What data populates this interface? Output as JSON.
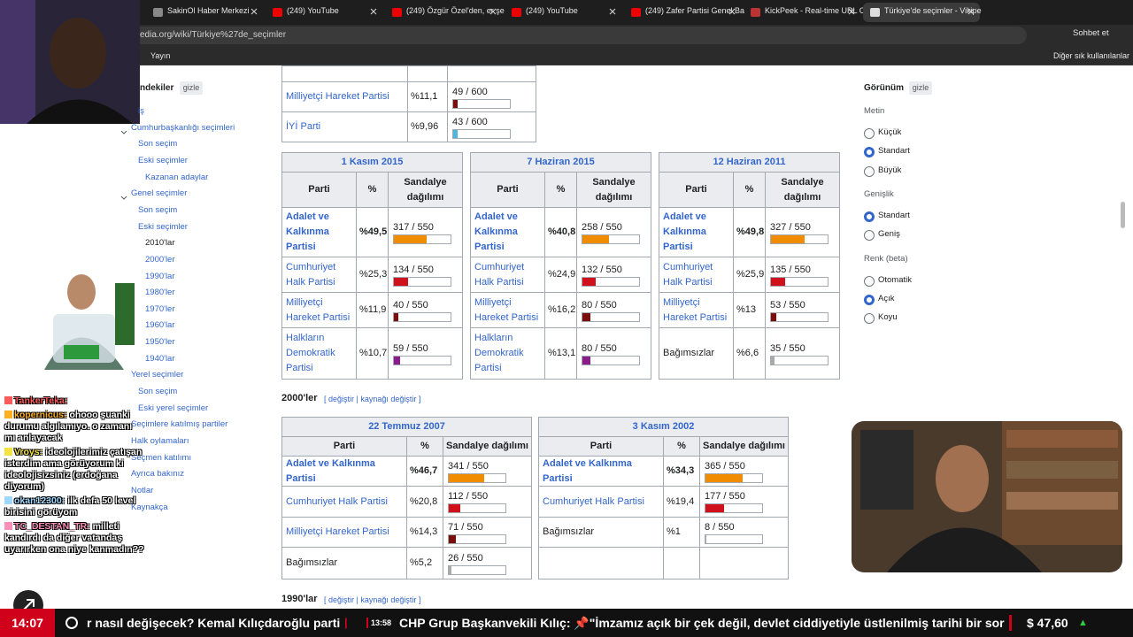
{
  "browser": {
    "tabs": [
      "SakinOl Haber Merkezi",
      "(249) YouTube",
      "(249) Özgür Özel'den, er şe",
      "(249) YouTube",
      "(249) Zafer Partisi Genel Ba",
      "KickPeek - Real-time URL C",
      "Türkiye'de seçimler - Vikipe"
    ],
    "active_tab": 6,
    "url": "edia.org/wiki/Türkiye%27de_seçimler",
    "chat_button": "Sohbet et",
    "bookmarks": [
      "Yayın"
    ],
    "other_bookmarks": "Diğer sık kullanılanlar"
  },
  "toc": {
    "title": "ndekiler",
    "hide": "gizle",
    "items": [
      {
        "text": "iş",
        "level": 2
      },
      {
        "text": "Cumhurbaşkanlığı seçimleri",
        "level": 1,
        "expanded": true
      },
      {
        "text": "Son seçim",
        "level": 2
      },
      {
        "text": "Eski seçimler",
        "level": 2
      },
      {
        "text": "Kazanan adaylar",
        "level": 3
      },
      {
        "text": "Genel seçimler",
        "level": 1,
        "expanded": true
      },
      {
        "text": "Son seçim",
        "level": 2
      },
      {
        "text": "Eski seçimler",
        "level": 2
      },
      {
        "text": "2010'lar",
        "level": 3,
        "current": true
      },
      {
        "text": "2000'ler",
        "level": 3
      },
      {
        "text": "1990'lar",
        "level": 3
      },
      {
        "text": "1980'ler",
        "level": 3
      },
      {
        "text": "1970'ler",
        "level": 3
      },
      {
        "text": "1960'lar",
        "level": 3
      },
      {
        "text": "1950'ler",
        "level": 3
      },
      {
        "text": "1940'lar",
        "level": 3
      },
      {
        "text": "Yerel seçimler",
        "level": 1
      },
      {
        "text": "Son seçim",
        "level": 2
      },
      {
        "text": "Eski yerel seçimler",
        "level": 2
      },
      {
        "text": "Seçimlere katılmış partiler",
        "level": 1
      },
      {
        "text": "Halk oylamaları",
        "level": 1
      },
      {
        "text": "Seçmen katılımı",
        "level": 1
      },
      {
        "text": "Ayrıca bakınız",
        "level": 1
      },
      {
        "text": "Notlar",
        "level": 1
      },
      {
        "text": "Kaynakça",
        "level": 1
      }
    ]
  },
  "top_table": {
    "rows": [
      {
        "party": "Milliyetçi Hareket Partisi",
        "link": true,
        "pct": "%11,1",
        "seats": 49,
        "total": 600,
        "seats_label": "49 / 600",
        "color": "#7b0d0d"
      },
      {
        "party": "İYİ Parti",
        "link": true,
        "pct": "%9,96",
        "seats": 43,
        "total": 600,
        "seats_label": "43 / 600",
        "color": "#4cb6dd"
      }
    ]
  },
  "tables_2010s": [
    {
      "title": "1 Kasım 2015",
      "headers": [
        "Parti",
        "%",
        "Sandalye dağılımı"
      ],
      "rows": [
        {
          "party": "Adalet ve Kalkınma Partisi",
          "link": true,
          "winner": true,
          "pct": "%49,5",
          "seats": 317,
          "total": 550,
          "seats_label": "317 / 550",
          "color": "#f18c00"
        },
        {
          "party": "Cumhuriyet Halk Partisi",
          "link": true,
          "pct": "%25,3",
          "seats": 134,
          "total": 550,
          "seats_label": "134 / 550",
          "color": "#d0111b"
        },
        {
          "party": "Milliyetçi Hareket Partisi",
          "link": true,
          "pct": "%11,9",
          "seats": 40,
          "total": 550,
          "seats_label": "40 / 550",
          "color": "#7b0d0d"
        },
        {
          "party": "Halkların Demokratik Partisi",
          "link": true,
          "pct": "%10,7",
          "seats": 59,
          "total": 550,
          "seats_label": "59 / 550",
          "color": "#8b1c8b"
        }
      ]
    },
    {
      "title": "7 Haziran 2015",
      "headers": [
        "Parti",
        "%",
        "Sandalye dağılımı"
      ],
      "rows": [
        {
          "party": "Adalet ve Kalkınma Partisi",
          "link": true,
          "winner": true,
          "pct": "%40,8",
          "seats": 258,
          "total": 550,
          "seats_label": "258 / 550",
          "color": "#f18c00"
        },
        {
          "party": "Cumhuriyet Halk Partisi",
          "link": true,
          "pct": "%24,9",
          "seats": 132,
          "total": 550,
          "seats_label": "132 / 550",
          "color": "#d0111b"
        },
        {
          "party": "Milliyetçi Hareket Partisi",
          "link": true,
          "pct": "%16,2",
          "seats": 80,
          "total": 550,
          "seats_label": "80 / 550",
          "color": "#7b0d0d"
        },
        {
          "party": "Halkların Demokratik Partisi",
          "link": true,
          "pct": "%13,1",
          "seats": 80,
          "total": 550,
          "seats_label": "80 / 550",
          "color": "#8b1c8b"
        }
      ]
    },
    {
      "title": "12 Haziran 2011",
      "headers": [
        "Parti",
        "%",
        "Sandalye dağılımı"
      ],
      "rows": [
        {
          "party": "Adalet ve Kalkınma Partisi",
          "link": true,
          "winner": true,
          "pct": "%49,8",
          "seats": 327,
          "total": 550,
          "seats_label": "327 / 550",
          "color": "#f18c00"
        },
        {
          "party": "Cumhuriyet Halk Partisi",
          "link": true,
          "pct": "%25,9",
          "seats": 135,
          "total": 550,
          "seats_label": "135 / 550",
          "color": "#d0111b"
        },
        {
          "party": "Milliyetçi Hareket Partisi",
          "link": true,
          "pct": "%13",
          "seats": 53,
          "total": 550,
          "seats_label": "53 / 550",
          "color": "#7b0d0d"
        },
        {
          "party": "Bağımsızlar",
          "link": false,
          "pct": "%6,6",
          "seats": 35,
          "total": 550,
          "seats_label": "35 / 550",
          "color": "#aaaaaa"
        }
      ]
    }
  ],
  "section_2000s": {
    "title": "2000'ler",
    "edit": "[ değiştir | kaynağı değiştir ]"
  },
  "tables_2000s": [
    {
      "title": "22 Temmuz 2007",
      "headers": [
        "Parti",
        "%",
        "Sandalye dağılımı"
      ],
      "rows": [
        {
          "party": "Adalet ve Kalkınma Partisi",
          "link": true,
          "winner": true,
          "pct": "%46,7",
          "seats": 341,
          "total": 550,
          "seats_label": "341 / 550",
          "color": "#f18c00"
        },
        {
          "party": "Cumhuriyet Halk Partisi",
          "link": true,
          "pct": "%20,8",
          "seats": 112,
          "total": 550,
          "seats_label": "112 / 550",
          "color": "#d0111b"
        },
        {
          "party": "Milliyetçi Hareket Partisi",
          "link": true,
          "pct": "%14,3",
          "seats": 71,
          "total": 550,
          "seats_label": "71 / 550",
          "color": "#7b0d0d"
        },
        {
          "party": "Bağımsızlar",
          "link": false,
          "pct": "%5,2",
          "seats": 26,
          "total": 550,
          "seats_label": "26 / 550",
          "color": "#aaaaaa"
        }
      ]
    },
    {
      "title": "3 Kasım 2002",
      "headers": [
        "Parti",
        "%",
        "Sandalye dağılımı"
      ],
      "rows": [
        {
          "party": "Adalet ve Kalkınma Partisi",
          "link": true,
          "winner": true,
          "pct": "%34,3",
          "seats": 365,
          "total": 550,
          "seats_label": "365 / 550",
          "color": "#f18c00"
        },
        {
          "party": "Cumhuriyet Halk Partisi",
          "link": true,
          "pct": "%19,4",
          "seats": 177,
          "total": 550,
          "seats_label": "177 / 550",
          "color": "#d0111b"
        },
        {
          "party": "Bağımsızlar",
          "link": false,
          "pct": "%1",
          "seats": 8,
          "total": 550,
          "seats_label": "8 / 550",
          "color": "#aaaaaa"
        }
      ]
    }
  ],
  "section_1990s": {
    "title": "1990'lar",
    "edit": "[ değiştir | kaynağı değiştir ]"
  },
  "appearance": {
    "title": "Görünüm",
    "hide": "gizle",
    "groups": [
      {
        "title": "Metin",
        "options": [
          "Küçük",
          "Standart",
          "Büyük"
        ],
        "selected": 1
      },
      {
        "title": "Genişlik",
        "options": [
          "Standart",
          "Geniş"
        ],
        "selected": 0
      },
      {
        "title": "Renk (beta)",
        "options": [
          "Otomatik",
          "Açık",
          "Koyu"
        ],
        "selected": 1
      }
    ]
  },
  "chat": [
    {
      "user": "TankerTeka:",
      "text": "",
      "color": "#ff5a5a"
    },
    {
      "user": "kopernicus:",
      "text": "ohooo şuanki durumu algılamıyo. o zamanı mı anlayacak",
      "color": "#ffb020"
    },
    {
      "user": "Vroys:",
      "text": "ideolojilerimiz çatışan isterdim ama görüyorum ki ideolojisizsiniz (erdoğana diyorum)",
      "color": "#f5e342"
    },
    {
      "user": "okan12300:",
      "text": "ilk defa 50 level birisini görüyom",
      "color": "#9fd8ff"
    },
    {
      "user": "TC_DESTAN_TR:",
      "text": "milleti kandırdı da diğer vatandaş uyarırken ona niye kanmadın??",
      "color": "#ff8fb8"
    }
  ],
  "ticker": {
    "clock": "14:07",
    "headline_tail": "r nasıl değişecek? Kemal Kılıçdaroğlu parti",
    "separator": "|",
    "time": "13:58",
    "headline": "CHP Grup Başkanvekili Kılıç: 📌\"İmzamız açık bir çek değil, devlet ciddiyetiyle üstlenilmiş tarihi bir sor",
    "price": "$ 47,60",
    "trend": "▲"
  }
}
